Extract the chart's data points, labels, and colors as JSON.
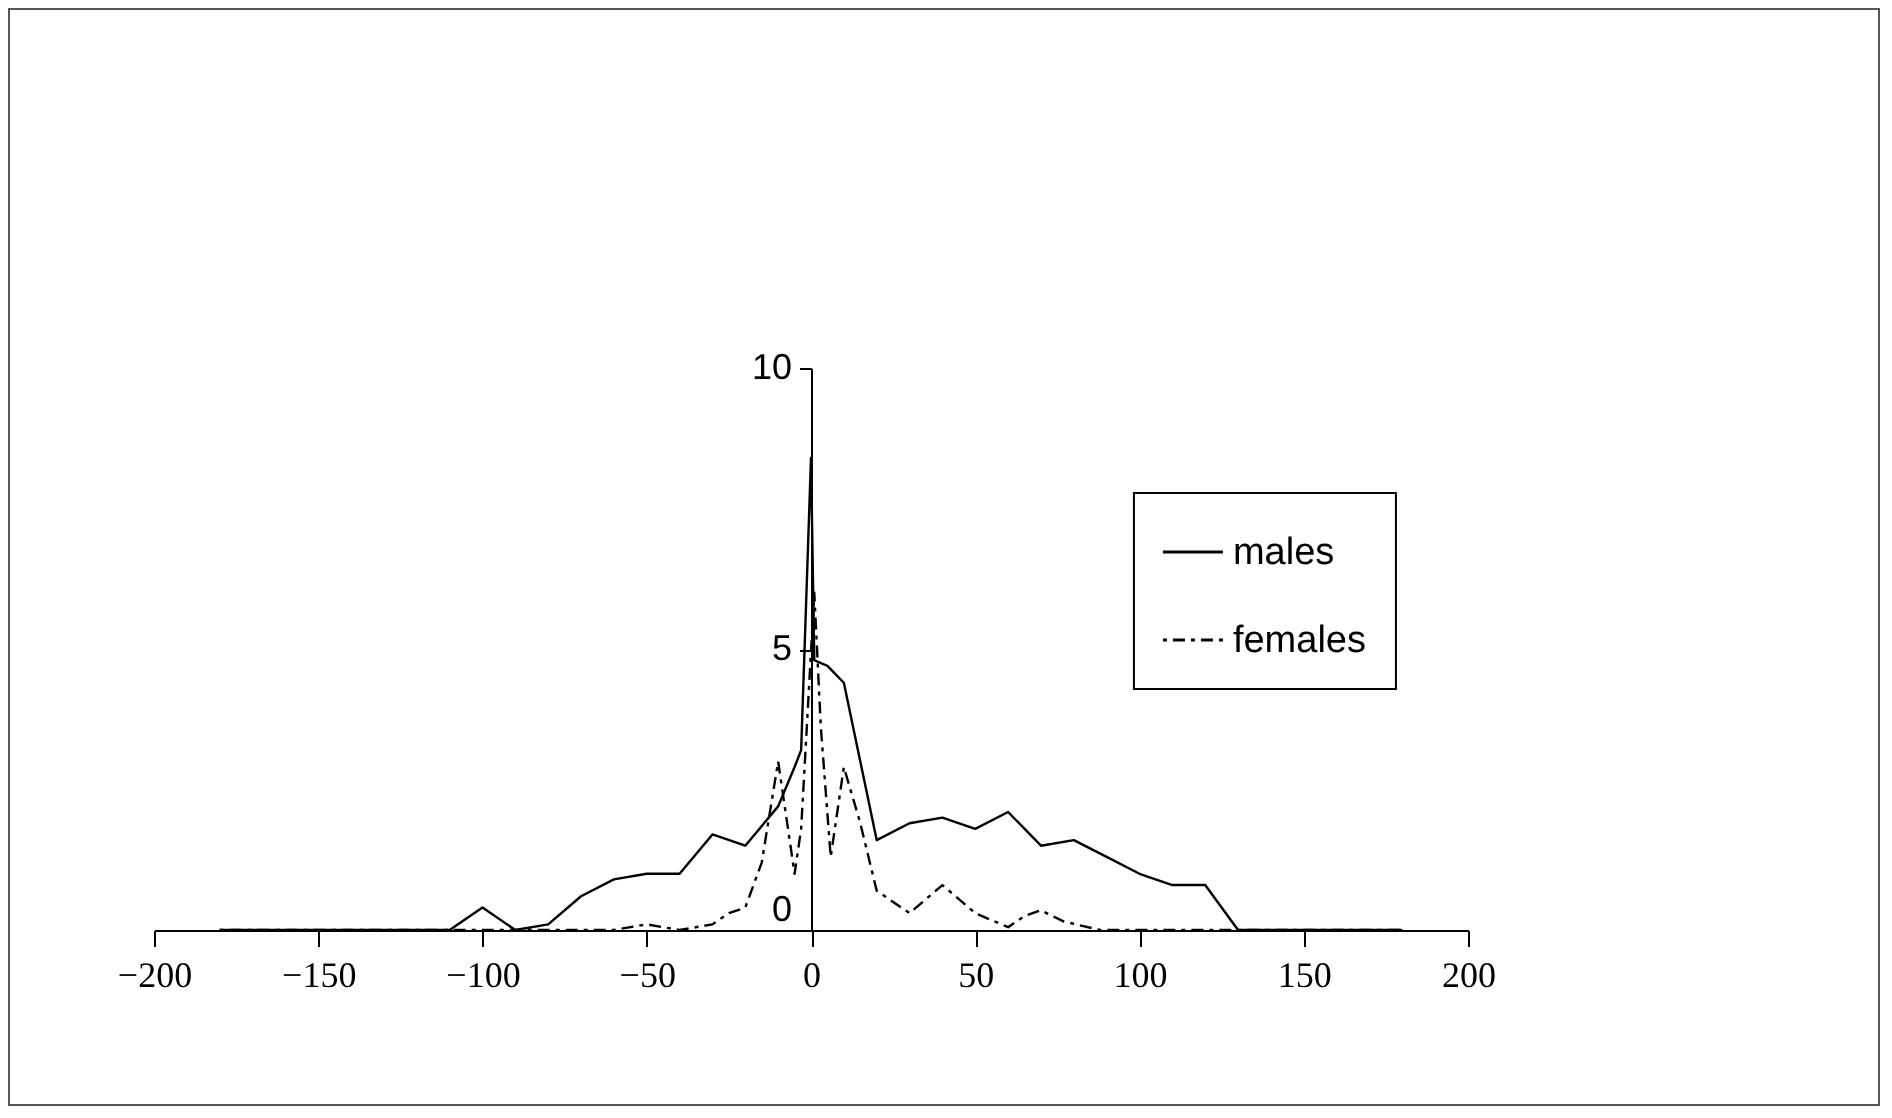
{
  "chart_data": {
    "type": "line",
    "xlim": [
      -200,
      200
    ],
    "xticks": [
      -200,
      -150,
      -100,
      -50,
      0,
      50,
      100,
      150,
      200
    ],
    "ylim": [
      0,
      10
    ],
    "yticks": [
      0,
      5,
      10
    ],
    "grid": false,
    "legend": "top right",
    "marker": "none",
    "series": [
      {
        "name": "males",
        "color": "#000000",
        "line_style": "solid",
        "x": [
          -180,
          -170,
          -160,
          -150,
          -140,
          -130,
          -120,
          -110,
          -100,
          -90,
          -80,
          -70,
          -60,
          -50,
          -40,
          -30,
          -20,
          -10,
          -5,
          -3,
          0,
          1,
          5,
          10,
          20,
          30,
          40,
          50,
          60,
          70,
          80,
          90,
          100,
          110,
          120,
          130,
          140,
          150,
          160,
          170,
          180
        ],
        "values": [
          0,
          0,
          0,
          0,
          0,
          0,
          0,
          0,
          0.4,
          0,
          0.1,
          0.6,
          0.9,
          1.0,
          1.0,
          1.7,
          1.5,
          2.2,
          2.9,
          3.2,
          8.4,
          4.8,
          4.7,
          4.4,
          1.6,
          1.9,
          2.0,
          1.8,
          2.1,
          1.5,
          1.6,
          1.3,
          1.0,
          0.8,
          0.8,
          0,
          0,
          0,
          0,
          0,
          0
        ]
      },
      {
        "name": "females",
        "color": "#000000",
        "line_style": "dotted",
        "x": [
          -180,
          -170,
          -160,
          -150,
          -140,
          -130,
          -120,
          -110,
          -100,
          -90,
          -80,
          -70,
          -60,
          -50,
          -40,
          -30,
          -25,
          -20,
          -15,
          -10,
          -5,
          -3,
          1,
          3,
          6,
          10,
          15,
          20,
          30,
          40,
          50,
          60,
          65,
          70,
          77,
          88,
          100,
          110,
          120,
          130,
          140,
          150,
          160,
          170,
          180
        ],
        "values": [
          0,
          0,
          0,
          0,
          0,
          0,
          0,
          0,
          0,
          0,
          0,
          0,
          0,
          0.1,
          0,
          0.1,
          0.3,
          0.4,
          1.2,
          3.0,
          1.0,
          1.8,
          6.0,
          3.6,
          1.3,
          2.9,
          1.9,
          0.7,
          0.3,
          0.8,
          0.3,
          0.05,
          0.25,
          0.35,
          0.15,
          0,
          0,
          0,
          0,
          0,
          0,
          0,
          0,
          0,
          0
        ]
      }
    ]
  }
}
